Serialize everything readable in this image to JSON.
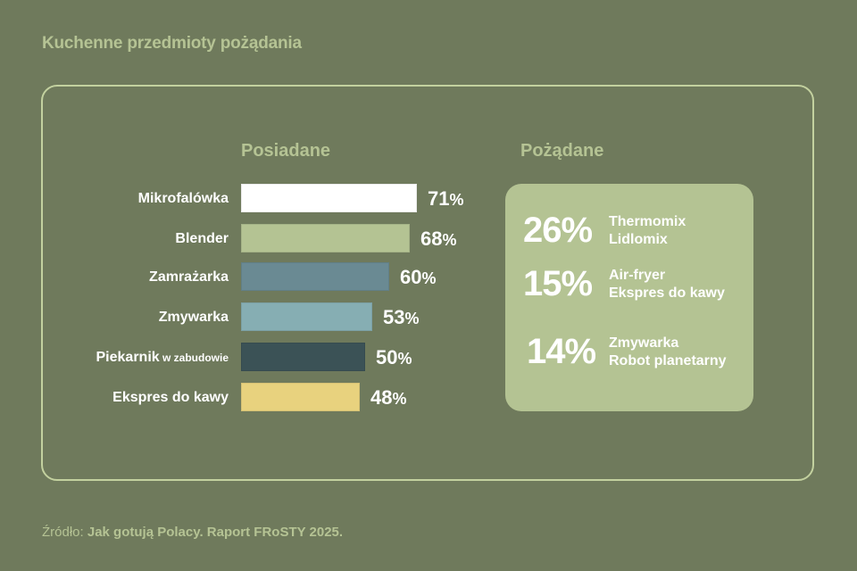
{
  "title": "Kuchenne przedmioty pożądania",
  "owned": {
    "heading": "Posiadane"
  },
  "desired": {
    "heading": "Pożądane"
  },
  "source": {
    "prefix": "Źródło:",
    "text": "Jak gotują Polacy. Raport FRoSTY 2025."
  },
  "chart_data": [
    {
      "type": "bar",
      "orientation": "horizontal",
      "title": "Posiadane",
      "categories": [
        "Mikrofalówka",
        "Blender",
        "Zamrażarka",
        "Zmywarka",
        "Piekarnik w zabudowie",
        "Ekspres do kawy"
      ],
      "values": [
        71,
        68,
        60,
        53,
        50,
        48
      ],
      "unit": "%",
      "colors": [
        "#ffffff",
        "#b4c393",
        "#6a8a93",
        "#86aeb3",
        "#3b5256",
        "#e8d27e"
      ],
      "labels": [
        {
          "main": "Mikrofalówka",
          "sub": ""
        },
        {
          "main": "Blender",
          "sub": ""
        },
        {
          "main": "Zamrażarka",
          "sub": ""
        },
        {
          "main": "Zmywarka",
          "sub": ""
        },
        {
          "main": "Piekarnik",
          "sub": "w zabudowie"
        },
        {
          "main": "Ekspres do kawy",
          "sub": ""
        }
      ],
      "value_labels": [
        "71",
        "68",
        "60",
        "53",
        "50",
        "48"
      ],
      "grid": false,
      "legend": "none"
    },
    {
      "type": "table",
      "title": "Pożądane",
      "rows": [
        {
          "value": 26,
          "label": "26%",
          "items": [
            "Thermomix",
            "Lidlomix"
          ]
        },
        {
          "value": 15,
          "label": "15%",
          "items": [
            "Air-fryer",
            "Ekspres do kawy"
          ]
        },
        {
          "value": 14,
          "label": "14%",
          "items": [
            "Zmywarka",
            "Robot planetarny"
          ]
        }
      ]
    }
  ],
  "colors": {
    "background": "#6f7a5c",
    "accent": "#b5c394",
    "card_border": "#c3d19f",
    "desired_box": "#b4c393"
  }
}
